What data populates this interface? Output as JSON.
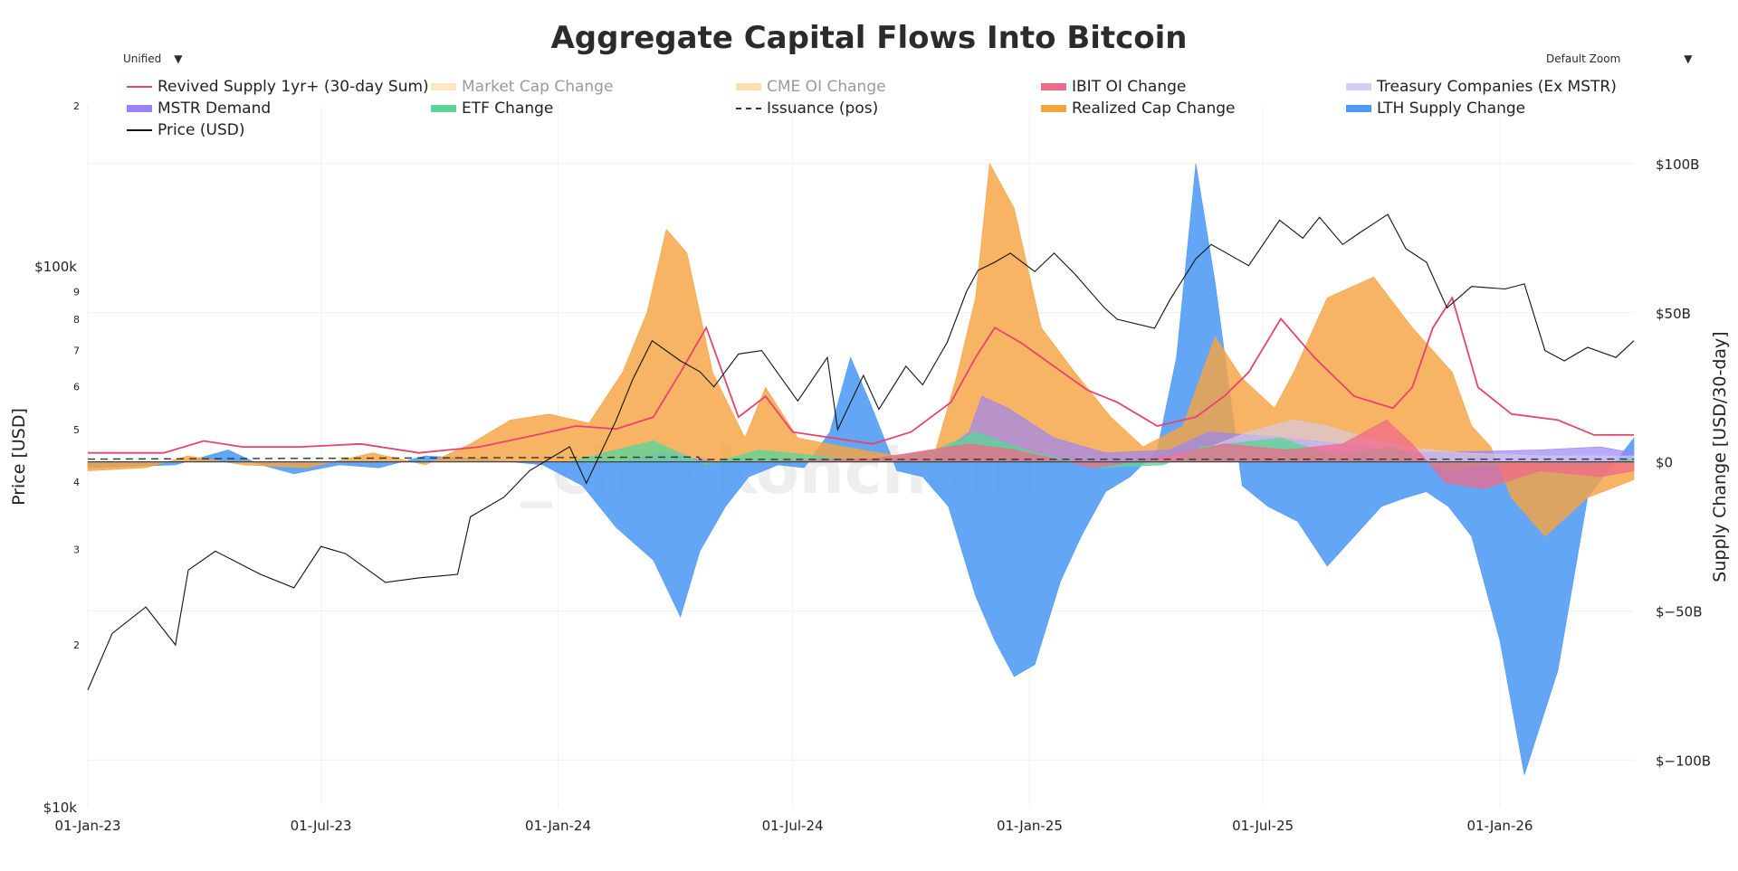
{
  "header": {
    "title": "Aggregate Capital Flows Into Bitcoin",
    "hover_mode": "Unified",
    "zoom": "Default Zoom",
    "watermark": "_checkonchain"
  },
  "legend": [
    {
      "label": "Revived Supply 1yr+ (30-day Sum)",
      "color": "#e8436e",
      "style": "line",
      "visible": true
    },
    {
      "label": "Market Cap Change",
      "color": "#fde6c4",
      "style": "box",
      "visible": false
    },
    {
      "label": "CME OI Change",
      "color": "#fbe0b0",
      "style": "box",
      "visible": false
    },
    {
      "label": "IBIT OI Change",
      "color": "#f06a8a",
      "style": "box",
      "visible": true
    },
    {
      "label": "Treasury Companies (Ex MSTR)",
      "color": "#d2cdf5",
      "style": "box",
      "visible": true
    },
    {
      "label": "MSTR Demand",
      "color": "#9b84f5",
      "style": "box",
      "visible": true
    },
    {
      "label": "ETF Change",
      "color": "#5ed39a",
      "style": "box",
      "visible": true
    },
    {
      "label": "Issuance (pos)",
      "color": "#333333",
      "style": "dash",
      "visible": true
    },
    {
      "label": "Realized Cap Change",
      "color": "#f5a442",
      "style": "box",
      "visible": true
    },
    {
      "label": "LTH Supply Change",
      "color": "#4f9af5",
      "style": "box",
      "visible": true
    },
    {
      "label": "Price (USD)",
      "color": "#111111",
      "style": "line",
      "visible": true
    }
  ],
  "axes": {
    "x_ticks": [
      "01-Jan-23",
      "01-Jul-23",
      "01-Jan-24",
      "01-Jul-24",
      "01-Jan-25",
      "01-Jul-25",
      "01-Jan-26"
    ],
    "left_title": "Price [USD]",
    "left_major": [
      "$10k",
      "$100k"
    ],
    "left_minor_low": [
      "2",
      "3",
      "4",
      "5",
      "6",
      "7",
      "8",
      "9"
    ],
    "left_minor_high": [
      "2"
    ],
    "right_title": "Supply Change [USD/30-day]",
    "right_ticks": [
      "$100B",
      "$50B",
      "$0",
      "$−50B",
      "$−100B"
    ]
  },
  "chart_data": {
    "type": "area",
    "title": "Aggregate Capital Flows Into Bitcoin",
    "x_range": [
      "2023-01-01",
      "2026-04-15"
    ],
    "y_left": {
      "label": "Price [USD]",
      "scale": "log",
      "range": [
        10000,
        200000
      ]
    },
    "y_right": {
      "label": "Supply Change [USD/30-day]",
      "unit": "USD billions",
      "range": [
        -116,
        120
      ]
    },
    "legend_position": "top",
    "grid": true,
    "series": [
      {
        "name": "Price (USD)",
        "axis": "left",
        "type": "line",
        "color": "#111111",
        "x": [
          "2023-01-01",
          "2023-01-20",
          "2023-02-15",
          "2023-03-10",
          "2023-03-20",
          "2023-04-10",
          "2023-05-15",
          "2023-06-10",
          "2023-07-01",
          "2023-07-20",
          "2023-08-20",
          "2023-09-15",
          "2023-10-15",
          "2023-10-25",
          "2023-11-20",
          "2023-12-10",
          "2024-01-10",
          "2024-01-23",
          "2024-02-15",
          "2024-02-28",
          "2024-03-14",
          "2024-04-05",
          "2024-04-20",
          "2024-05-01",
          "2024-05-20",
          "2024-06-07",
          "2024-07-05",
          "2024-07-28",
          "2024-08-05",
          "2024-08-25",
          "2024-09-06",
          "2024-09-27",
          "2024-10-10",
          "2024-10-29",
          "2024-11-13",
          "2024-11-22",
          "2024-12-05",
          "2024-12-17",
          "2025-01-05",
          "2025-01-20",
          "2025-02-05",
          "2025-02-28",
          "2025-03-10",
          "2025-04-08",
          "2025-04-20",
          "2025-05-10",
          "2025-05-22",
          "2025-06-20",
          "2025-07-14",
          "2025-08-01",
          "2025-08-14",
          "2025-09-01",
          "2025-09-15",
          "2025-10-06",
          "2025-10-20",
          "2025-11-05",
          "2025-11-21",
          "2025-12-10",
          "2026-01-05",
          "2026-01-20",
          "2026-02-05",
          "2026-02-20",
          "2026-03-10",
          "2026-04-01",
          "2026-04-15"
        ],
        "values": [
          16500,
          21000,
          23500,
          20000,
          27500,
          29800,
          27000,
          25500,
          30400,
          29500,
          26100,
          26600,
          27000,
          34500,
          37500,
          42000,
          46500,
          39800,
          52000,
          62000,
          73000,
          67000,
          64000,
          60000,
          69000,
          70000,
          56500,
          68000,
          50000,
          63000,
          54500,
          65500,
          60500,
          72500,
          90000,
          98500,
          102000,
          106000,
          98000,
          106000,
          97000,
          84000,
          80000,
          77000,
          87000,
          103500,
          110000,
          100500,
          122000,
          113000,
          123500,
          110000,
          116000,
          125000,
          108000,
          102000,
          84000,
          92000,
          91000,
          93000,
          70000,
          67000,
          71000,
          68000,
          73000
        ]
      },
      {
        "name": "LTH Supply Change",
        "axis": "right",
        "type": "area",
        "color": "#4f9af5",
        "x": [
          "2023-01-01",
          "2023-03-10",
          "2023-04-20",
          "2023-05-15",
          "2023-06-10",
          "2023-07-15",
          "2023-08-15",
          "2023-09-20",
          "2023-11-01",
          "2023-12-20",
          "2024-01-20",
          "2024-02-15",
          "2024-03-15",
          "2024-04-05",
          "2024-04-20",
          "2024-05-10",
          "2024-05-28",
          "2024-06-20",
          "2024-07-10",
          "2024-07-30",
          "2024-08-15",
          "2024-08-30",
          "2024-09-20",
          "2024-10-10",
          "2024-10-30",
          "2024-11-20",
          "2024-12-05",
          "2024-12-20",
          "2025-01-05",
          "2025-01-25",
          "2025-02-10",
          "2025-03-01",
          "2025-03-20",
          "2025-04-10",
          "2025-04-25",
          "2025-05-10",
          "2025-05-25",
          "2025-06-15",
          "2025-07-05",
          "2025-07-28",
          "2025-08-20",
          "2025-09-10",
          "2025-10-01",
          "2025-10-20",
          "2025-11-05",
          "2025-11-22",
          "2025-12-10",
          "2026-01-01",
          "2026-01-20",
          "2026-02-15",
          "2026-03-10",
          "2026-04-15"
        ],
        "values": [
          -2,
          -1,
          4,
          -1,
          -4,
          -1,
          -2,
          2,
          1,
          -1,
          -8,
          -22,
          -33,
          -52,
          -30,
          -15,
          -5,
          -1,
          -2,
          10,
          35,
          20,
          -3,
          -5,
          -15,
          -45,
          -60,
          -72,
          -68,
          -40,
          -25,
          -10,
          -5,
          4,
          35,
          100,
          60,
          -8,
          -15,
          -20,
          -35,
          -25,
          -15,
          -12,
          -10,
          -15,
          -25,
          -60,
          -105,
          -70,
          -12,
          8
        ]
      },
      {
        "name": "Realized Cap Change",
        "axis": "right",
        "type": "area",
        "color": "#f5a442",
        "x": [
          "2023-01-01",
          "2023-02-15",
          "2023-03-20",
          "2023-05-01",
          "2023-06-20",
          "2023-08-10",
          "2023-09-20",
          "2023-10-25",
          "2023-11-25",
          "2023-12-25",
          "2024-01-25",
          "2024-02-20",
          "2024-03-10",
          "2024-03-25",
          "2024-04-10",
          "2024-04-30",
          "2024-05-25",
          "2024-06-10",
          "2024-07-05",
          "2024-08-10",
          "2024-09-20",
          "2024-10-20",
          "2024-11-05",
          "2024-11-20",
          "2024-12-01",
          "2024-12-20",
          "2025-01-10",
          "2025-02-05",
          "2025-03-05",
          "2025-03-30",
          "2025-04-30",
          "2025-05-25",
          "2025-06-15",
          "2025-07-10",
          "2025-07-25",
          "2025-08-20",
          "2025-09-25",
          "2025-10-25",
          "2025-11-25",
          "2025-12-10",
          "2025-12-25",
          "2026-01-10",
          "2026-02-05",
          "2026-03-10",
          "2026-04-15"
        ],
        "values": [
          -3,
          -2,
          2,
          -1,
          -2,
          3,
          -1,
          6,
          14,
          16,
          13,
          30,
          50,
          78,
          70,
          30,
          8,
          25,
          8,
          5,
          2,
          4,
          28,
          55,
          100,
          85,
          45,
          30,
          15,
          5,
          12,
          42,
          28,
          18,
          30,
          55,
          62,
          45,
          30,
          12,
          5,
          -12,
          -25,
          -12,
          -6
        ]
      },
      {
        "name": "Revived Supply 1yr+ (30-day Sum)",
        "axis": "right",
        "type": "line",
        "color": "#e8436e",
        "x": [
          "2023-01-01",
          "2023-03-01",
          "2023-04-01",
          "2023-05-01",
          "2023-06-15",
          "2023-08-01",
          "2023-09-15",
          "2023-11-01",
          "2023-12-15",
          "2024-01-15",
          "2024-02-15",
          "2024-03-15",
          "2024-04-05",
          "2024-04-25",
          "2024-05-20",
          "2024-06-10",
          "2024-07-01",
          "2024-08-01",
          "2024-09-01",
          "2024-10-01",
          "2024-11-01",
          "2024-11-20",
          "2024-12-05",
          "2024-12-25",
          "2025-01-20",
          "2025-02-15",
          "2025-03-10",
          "2025-04-10",
          "2025-05-10",
          "2025-06-01",
          "2025-06-20",
          "2025-07-15",
          "2025-08-10",
          "2025-09-10",
          "2025-10-10",
          "2025-10-25",
          "2025-11-10",
          "2025-11-25",
          "2025-12-15",
          "2026-01-10",
          "2026-02-15",
          "2026-03-15",
          "2026-04-15"
        ],
        "values": [
          3,
          3,
          7,
          5,
          5,
          6,
          3,
          5,
          9,
          12,
          11,
          15,
          30,
          45,
          15,
          22,
          10,
          8,
          6,
          10,
          20,
          35,
          45,
          40,
          32,
          24,
          20,
          12,
          15,
          22,
          30,
          48,
          35,
          22,
          18,
          25,
          45,
          55,
          25,
          16,
          14,
          9,
          9
        ]
      },
      {
        "name": "MSTR Demand",
        "axis": "right",
        "type": "area",
        "color": "#9b84f5",
        "x": [
          "2023-01-01",
          "2024-02-20",
          "2024-03-20",
          "2024-05-01",
          "2024-10-15",
          "2024-11-15",
          "2024-11-25",
          "2024-12-15",
          "2025-01-20",
          "2025-03-01",
          "2025-04-20",
          "2025-05-20",
          "2025-07-20",
          "2025-09-01",
          "2025-11-01",
          "2026-02-01",
          "2026-03-20",
          "2026-04-15"
        ],
        "values": [
          0,
          0,
          3,
          0,
          0,
          10,
          22,
          18,
          8,
          3,
          4,
          10,
          8,
          6,
          3,
          4,
          5,
          3
        ]
      },
      {
        "name": "Treasury Companies (Ex MSTR)",
        "axis": "right",
        "type": "area",
        "color": "#d2cdf5",
        "x": [
          "2023-01-01",
          "2025-04-01",
          "2025-05-15",
          "2025-06-20",
          "2025-07-25",
          "2025-08-20",
          "2025-09-20",
          "2025-10-20",
          "2025-12-01",
          "2026-02-01",
          "2026-04-15"
        ],
        "values": [
          0,
          0,
          4,
          10,
          14,
          12,
          8,
          5,
          3,
          2,
          2
        ]
      },
      {
        "name": "ETF Change",
        "axis": "right",
        "type": "area",
        "color": "#5ed39a",
        "x": [
          "2023-01-01",
          "2024-01-10",
          "2024-02-15",
          "2024-03-15",
          "2024-04-25",
          "2024-06-05",
          "2024-07-20",
          "2024-08-25",
          "2024-10-20",
          "2024-11-20",
          "2025-01-05",
          "2025-02-25",
          "2025-04-15",
          "2025-05-15",
          "2025-07-15",
          "2025-08-25",
          "2025-10-10",
          "2025-11-20",
          "2026-01-10",
          "2026-03-10",
          "2026-04-15"
        ],
        "values": [
          0,
          0,
          4,
          7,
          -1,
          4,
          2,
          0,
          4,
          10,
          3,
          -2,
          -1,
          5,
          8,
          2,
          5,
          -3,
          0,
          -1,
          1
        ]
      },
      {
        "name": "IBIT OI Change",
        "axis": "right",
        "type": "area",
        "color": "#f06a8a",
        "x": [
          "2023-01-01",
          "2024-06-01",
          "2024-09-01",
          "2024-11-15",
          "2024-12-20",
          "2025-02-20",
          "2025-04-20",
          "2025-06-01",
          "2025-07-20",
          "2025-09-01",
          "2025-10-05",
          "2025-10-25",
          "2025-11-20",
          "2025-12-20",
          "2026-02-01",
          "2026-03-20",
          "2026-04-15"
        ],
        "values": [
          0,
          0,
          1,
          6,
          4,
          -2,
          2,
          6,
          4,
          6,
          14,
          6,
          -7,
          -9,
          -3,
          -5,
          -3
        ]
      },
      {
        "name": "Issuance (pos)",
        "axis": "right",
        "type": "line",
        "color": "#333333",
        "x": [
          "2023-01-01",
          "2024-04-19",
          "2024-04-20",
          "2026-04-15"
        ],
        "values": [
          0.9,
          1.6,
          0.8,
          0.9
        ]
      }
    ]
  }
}
